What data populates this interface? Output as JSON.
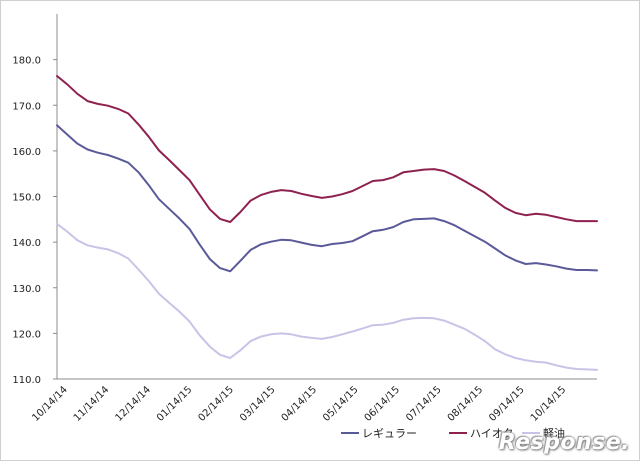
{
  "chart_data": {
    "type": "line",
    "title": "",
    "xlabel": "",
    "ylabel": "",
    "ylim": [
      110,
      190
    ],
    "yticks": [
      "110.0",
      "120.0",
      "130.0",
      "140.0",
      "150.0",
      "160.0",
      "170.0",
      "180.0"
    ],
    "x_tick_labels": [
      "10/14/14",
      "11/14/14",
      "12/14/14",
      "01/14/15",
      "02/14/15",
      "03/14/15",
      "04/14/15",
      "05/14/15",
      "06/14/15",
      "07/14/15",
      "08/14/15",
      "09/14/15",
      "10/14/15"
    ],
    "grid": false,
    "legend_position": "bottom",
    "series": [
      {
        "name": "レギュラー",
        "color": "#5a5a9a",
        "values": [
          165.6,
          163.6,
          161.6,
          160.3,
          159.6,
          159.1,
          158.3,
          157.4,
          155.3,
          152.5,
          149.4,
          147.3,
          145.2,
          142.9,
          139.5,
          136.3,
          134.3,
          133.6,
          135.9,
          138.3,
          139.5,
          140.1,
          140.5,
          140.4,
          139.9,
          139.4,
          139.1,
          139.6,
          139.8,
          140.2,
          141.3,
          142.4,
          142.7,
          143.3,
          144.4,
          145.0,
          145.1,
          145.2,
          144.6,
          143.7,
          142.5,
          141.3,
          140.1,
          138.6,
          137.1,
          136.0,
          135.2,
          135.4,
          135.1,
          134.7,
          134.2,
          133.9,
          133.9,
          133.8
        ]
      },
      {
        "name": "ハイオク",
        "color": "#8e2150",
        "values": [
          176.4,
          174.6,
          172.5,
          170.9,
          170.3,
          169.9,
          169.2,
          168.2,
          165.8,
          163.1,
          160.1,
          158.0,
          155.8,
          153.6,
          150.4,
          147.2,
          145.1,
          144.4,
          146.6,
          149.1,
          150.3,
          151.0,
          151.4,
          151.2,
          150.6,
          150.1,
          149.7,
          150.0,
          150.5,
          151.2,
          152.3,
          153.4,
          153.6,
          154.2,
          155.3,
          155.6,
          155.9,
          156.0,
          155.6,
          154.6,
          153.4,
          152.1,
          150.8,
          149.1,
          147.5,
          146.4,
          145.9,
          146.2,
          146.0,
          145.5,
          145.0,
          144.6,
          144.6,
          144.6
        ]
      },
      {
        "name": "軽油",
        "color": "#c8c4e8",
        "values": [
          144.0,
          142.3,
          140.4,
          139.3,
          138.8,
          138.4,
          137.6,
          136.4,
          134.0,
          131.5,
          128.7,
          126.7,
          124.8,
          122.6,
          119.6,
          117.1,
          115.3,
          114.6,
          116.3,
          118.3,
          119.3,
          119.8,
          120.0,
          119.8,
          119.3,
          119.0,
          118.8,
          119.2,
          119.8,
          120.4,
          121.1,
          121.8,
          121.9,
          122.3,
          123.0,
          123.3,
          123.4,
          123.3,
          122.8,
          121.9,
          121.0,
          119.7,
          118.3,
          116.5,
          115.4,
          114.6,
          114.1,
          113.8,
          113.6,
          113.0,
          112.5,
          112.2,
          112.1,
          112.0
        ]
      }
    ]
  },
  "watermark": {
    "text": "Response."
  }
}
